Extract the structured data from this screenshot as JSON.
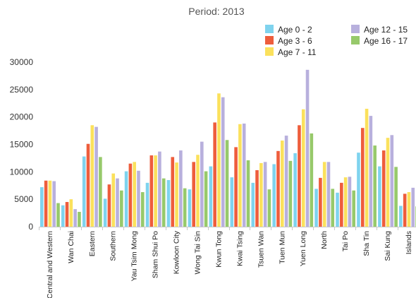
{
  "chart_data": {
    "type": "bar",
    "title": "Period: 2013",
    "xlabel": "",
    "ylabel": "",
    "ylim": [
      0,
      30000
    ],
    "yticks": [
      0,
      5000,
      10000,
      15000,
      20000,
      25000,
      30000
    ],
    "ytick_labels": [
      "0",
      "5000",
      "10000",
      "15000",
      "20000",
      "25000",
      "30000"
    ],
    "grid": false,
    "legend_position": "top-right",
    "categories": [
      "Central and Western",
      "Wan Chai",
      "Eastern",
      "Southern",
      "Yau Tsim Mong",
      "Sham Shui Po",
      "Kowloon City",
      "Wong Tai Sin",
      "Kwun Tong",
      "Kwai Tsing",
      "Tsuen Wan",
      "Tuen Mun",
      "Yuen Long",
      "North",
      "Tai Po",
      "Sha Tin",
      "Sai Kung",
      "Islands"
    ],
    "series": [
      {
        "name": "Age 0 - 2",
        "color": "#7fd3ee",
        "values": [
          7200,
          3900,
          12800,
          5100,
          10100,
          8000,
          8500,
          6800,
          11000,
          9000,
          8000,
          11400,
          13400,
          6900,
          6200,
          13500,
          11000,
          3800
        ]
      },
      {
        "name": "Age 3 - 6",
        "color": "#ee5d3c",
        "values": [
          8400,
          4500,
          15100,
          7700,
          11500,
          13000,
          12700,
          11800,
          19000,
          14500,
          10300,
          13800,
          18500,
          8900,
          8000,
          18000,
          13900,
          6000
        ]
      },
      {
        "name": "Age 7 - 11",
        "color": "#fbe15c",
        "values": [
          8400,
          5000,
          18500,
          9700,
          11800,
          13000,
          11700,
          13100,
          24300,
          18700,
          11600,
          15700,
          21400,
          11800,
          9000,
          21500,
          16200,
          6300
        ]
      },
      {
        "name": "Age 12 - 15",
        "color": "#b8b0dd",
        "values": [
          8300,
          3200,
          18200,
          8800,
          10200,
          13700,
          13900,
          15500,
          23600,
          18800,
          11800,
          16600,
          28600,
          11800,
          9100,
          20200,
          16700,
          7100
        ]
      },
      {
        "name": "Age 16 - 17",
        "color": "#97c96b",
        "values": [
          4300,
          2700,
          12700,
          6600,
          6300,
          8800,
          7000,
          10100,
          15800,
          12100,
          6800,
          12000,
          17000,
          6900,
          6600,
          14800,
          10900,
          3700
        ]
      }
    ]
  }
}
